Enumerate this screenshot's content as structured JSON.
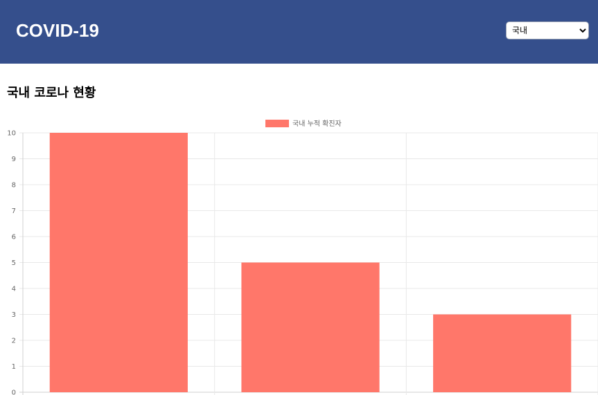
{
  "header": {
    "title": "COVID-19",
    "region_select": {
      "selected": "국내",
      "options": [
        "국내"
      ]
    },
    "background_color": "#354f8c"
  },
  "main": {
    "heading": "국내 코로나 현황"
  },
  "chart_data": {
    "type": "bar",
    "categories": [
      "",
      "",
      ""
    ],
    "series": [
      {
        "name": "국내 누적 확진자",
        "values": [
          10,
          5,
          3
        ],
        "color": "#ff776a"
      }
    ],
    "y_ticks": [
      "0",
      "1",
      "2",
      "3",
      "4",
      "5",
      "6",
      "7",
      "8",
      "9",
      "10"
    ],
    "ylim": [
      0,
      10
    ],
    "grid": true,
    "legend_position": "top-center"
  }
}
